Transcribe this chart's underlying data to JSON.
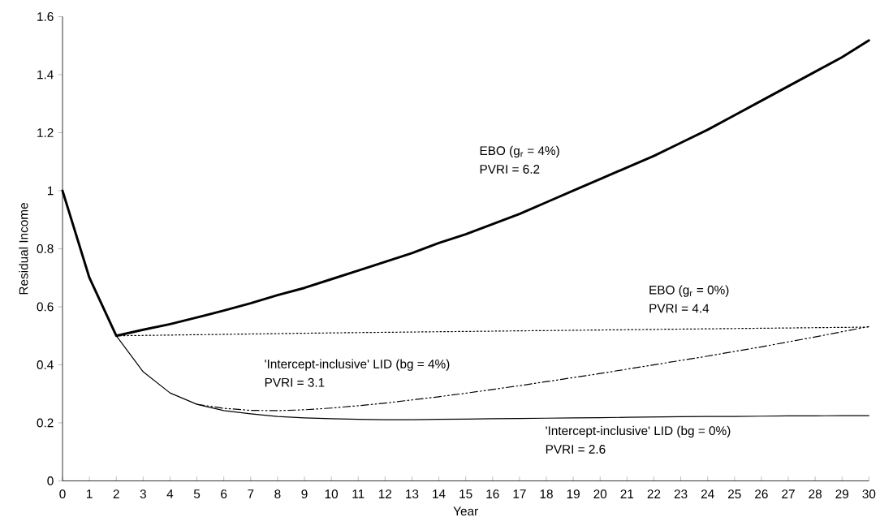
{
  "chart_data": {
    "type": "line",
    "xlabel": "Year",
    "ylabel": "Residual Income",
    "xlim": [
      0,
      30
    ],
    "ylim": [
      0,
      1.6
    ],
    "xticks": [
      0,
      1,
      2,
      3,
      4,
      5,
      6,
      7,
      8,
      9,
      10,
      11,
      12,
      13,
      14,
      15,
      16,
      17,
      18,
      19,
      20,
      21,
      22,
      23,
      24,
      25,
      26,
      27,
      28,
      29,
      30
    ],
    "yticks": [
      0,
      0.2,
      0.4,
      0.6,
      0.8,
      1,
      1.2,
      1.4,
      1.6
    ],
    "grid": false,
    "marker": "none",
    "series": [
      {
        "name": "EBO (g$_{r}$ = 4%)",
        "color": "#000000",
        "line_style": "solid",
        "x": [
          0,
          1,
          2,
          3,
          4,
          5,
          6,
          7,
          8,
          9,
          10,
          11,
          12,
          13,
          14,
          15,
          16,
          17,
          18,
          19,
          20,
          21,
          22,
          23,
          24,
          25,
          26,
          27,
          28,
          29,
          30
        ],
        "values": [
          1,
          0.7,
          0.5,
          0.521,
          0.54,
          0.563,
          0.587,
          0.612,
          0.64,
          0.665,
          0.695,
          0.725,
          0.755,
          0.785,
          0.82,
          0.85,
          0.885,
          0.92,
          0.96,
          1.0,
          1.04,
          1.08,
          1.12,
          1.165,
          1.21,
          1.26,
          1.31,
          1.36,
          1.41,
          1.46,
          1.518
        ]
      },
      {
        "name": "EBO (g$_{r}$ = 0%)",
        "color": "#000000",
        "line_style": "dotted",
        "x": [
          2,
          6,
          10,
          14,
          18,
          22,
          26,
          30
        ],
        "values": [
          0.5,
          0.505,
          0.51,
          0.514,
          0.518,
          0.522,
          0.526,
          0.53
        ]
      },
      {
        "name": "'Intercept-inclusive' LID (bg = 4%)",
        "color": "#000000",
        "line_style": "dashdotdotted",
        "x": [
          5,
          6,
          7,
          8,
          9,
          10,
          11,
          12,
          13,
          14,
          15,
          16,
          17,
          18,
          19,
          20,
          21,
          22,
          23,
          24,
          25,
          26,
          27,
          28,
          29,
          30
        ],
        "values": [
          0.264,
          0.25,
          0.243,
          0.242,
          0.245,
          0.251,
          0.259,
          0.268,
          0.279,
          0.29,
          0.302,
          0.315,
          0.328,
          0.342,
          0.356,
          0.37,
          0.385,
          0.4,
          0.415,
          0.43,
          0.446,
          0.462,
          0.479,
          0.496,
          0.514,
          0.532
        ]
      },
      {
        "name": "'Intercept-inclusive' LID (bg = 0%)",
        "color": "#000000",
        "line_style": "solid",
        "x": [
          2,
          3,
          4,
          5,
          6,
          7,
          8,
          9,
          10,
          11,
          12,
          13,
          14,
          15,
          16,
          17,
          18,
          19,
          20,
          21,
          22,
          23,
          24,
          25,
          26,
          27,
          28,
          29,
          30
        ],
        "values": [
          0.5,
          0.376,
          0.303,
          0.264,
          0.242,
          0.231,
          0.222,
          0.217,
          0.214,
          0.212,
          0.211,
          0.211,
          0.212,
          0.213,
          0.214,
          0.215,
          0.216,
          0.217,
          0.218,
          0.219,
          0.22,
          0.221,
          0.222,
          0.222,
          0.223,
          0.224,
          0.224,
          0.225,
          0.225
        ]
      }
    ],
    "annotations": [
      "PVRI = 6.2",
      "PVRI = 4.4",
      "PVRI = 3.1",
      "PVRI = 2.6"
    ]
  }
}
